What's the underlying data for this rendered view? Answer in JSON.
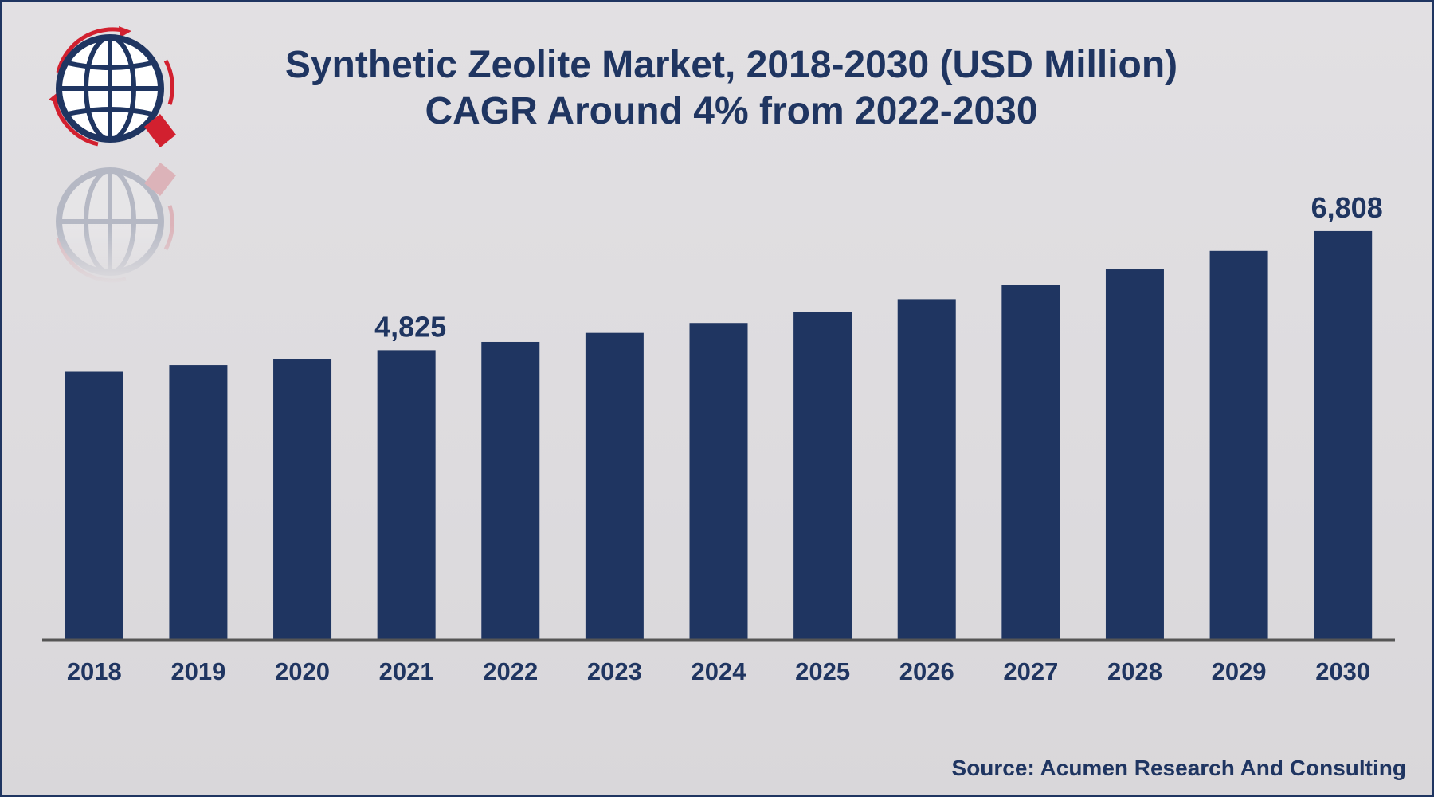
{
  "chart_data": {
    "type": "bar",
    "title": "Synthetic Zeolite Market, 2018-2030 (USD Million)",
    "subtitle": "CAGR Around 4% from 2022-2030",
    "xlabel": "",
    "ylabel": "",
    "categories": [
      "2018",
      "2019",
      "2020",
      "2021",
      "2022",
      "2023",
      "2024",
      "2025",
      "2026",
      "2027",
      "2028",
      "2029",
      "2030"
    ],
    "values": [
      4465,
      4577,
      4684,
      4825,
      4963,
      5113,
      5278,
      5465,
      5674,
      5911,
      6170,
      6478,
      6808
    ],
    "data_labels": [
      {
        "category": "2021",
        "text": "4,825"
      },
      {
        "category": "2030",
        "text": "6,808"
      }
    ],
    "ylim": [
      0,
      6900
    ],
    "grid": false,
    "legend": "none",
    "bar_color": "#1f3561",
    "axis_color": "#555555"
  },
  "source": "Source: Acumen Research And Consulting",
  "colors": {
    "brand_navy": "#1f3561",
    "brand_red": "#d2202f",
    "background": "#dcdadd"
  },
  "logo": {
    "icon": "globe-icon"
  }
}
